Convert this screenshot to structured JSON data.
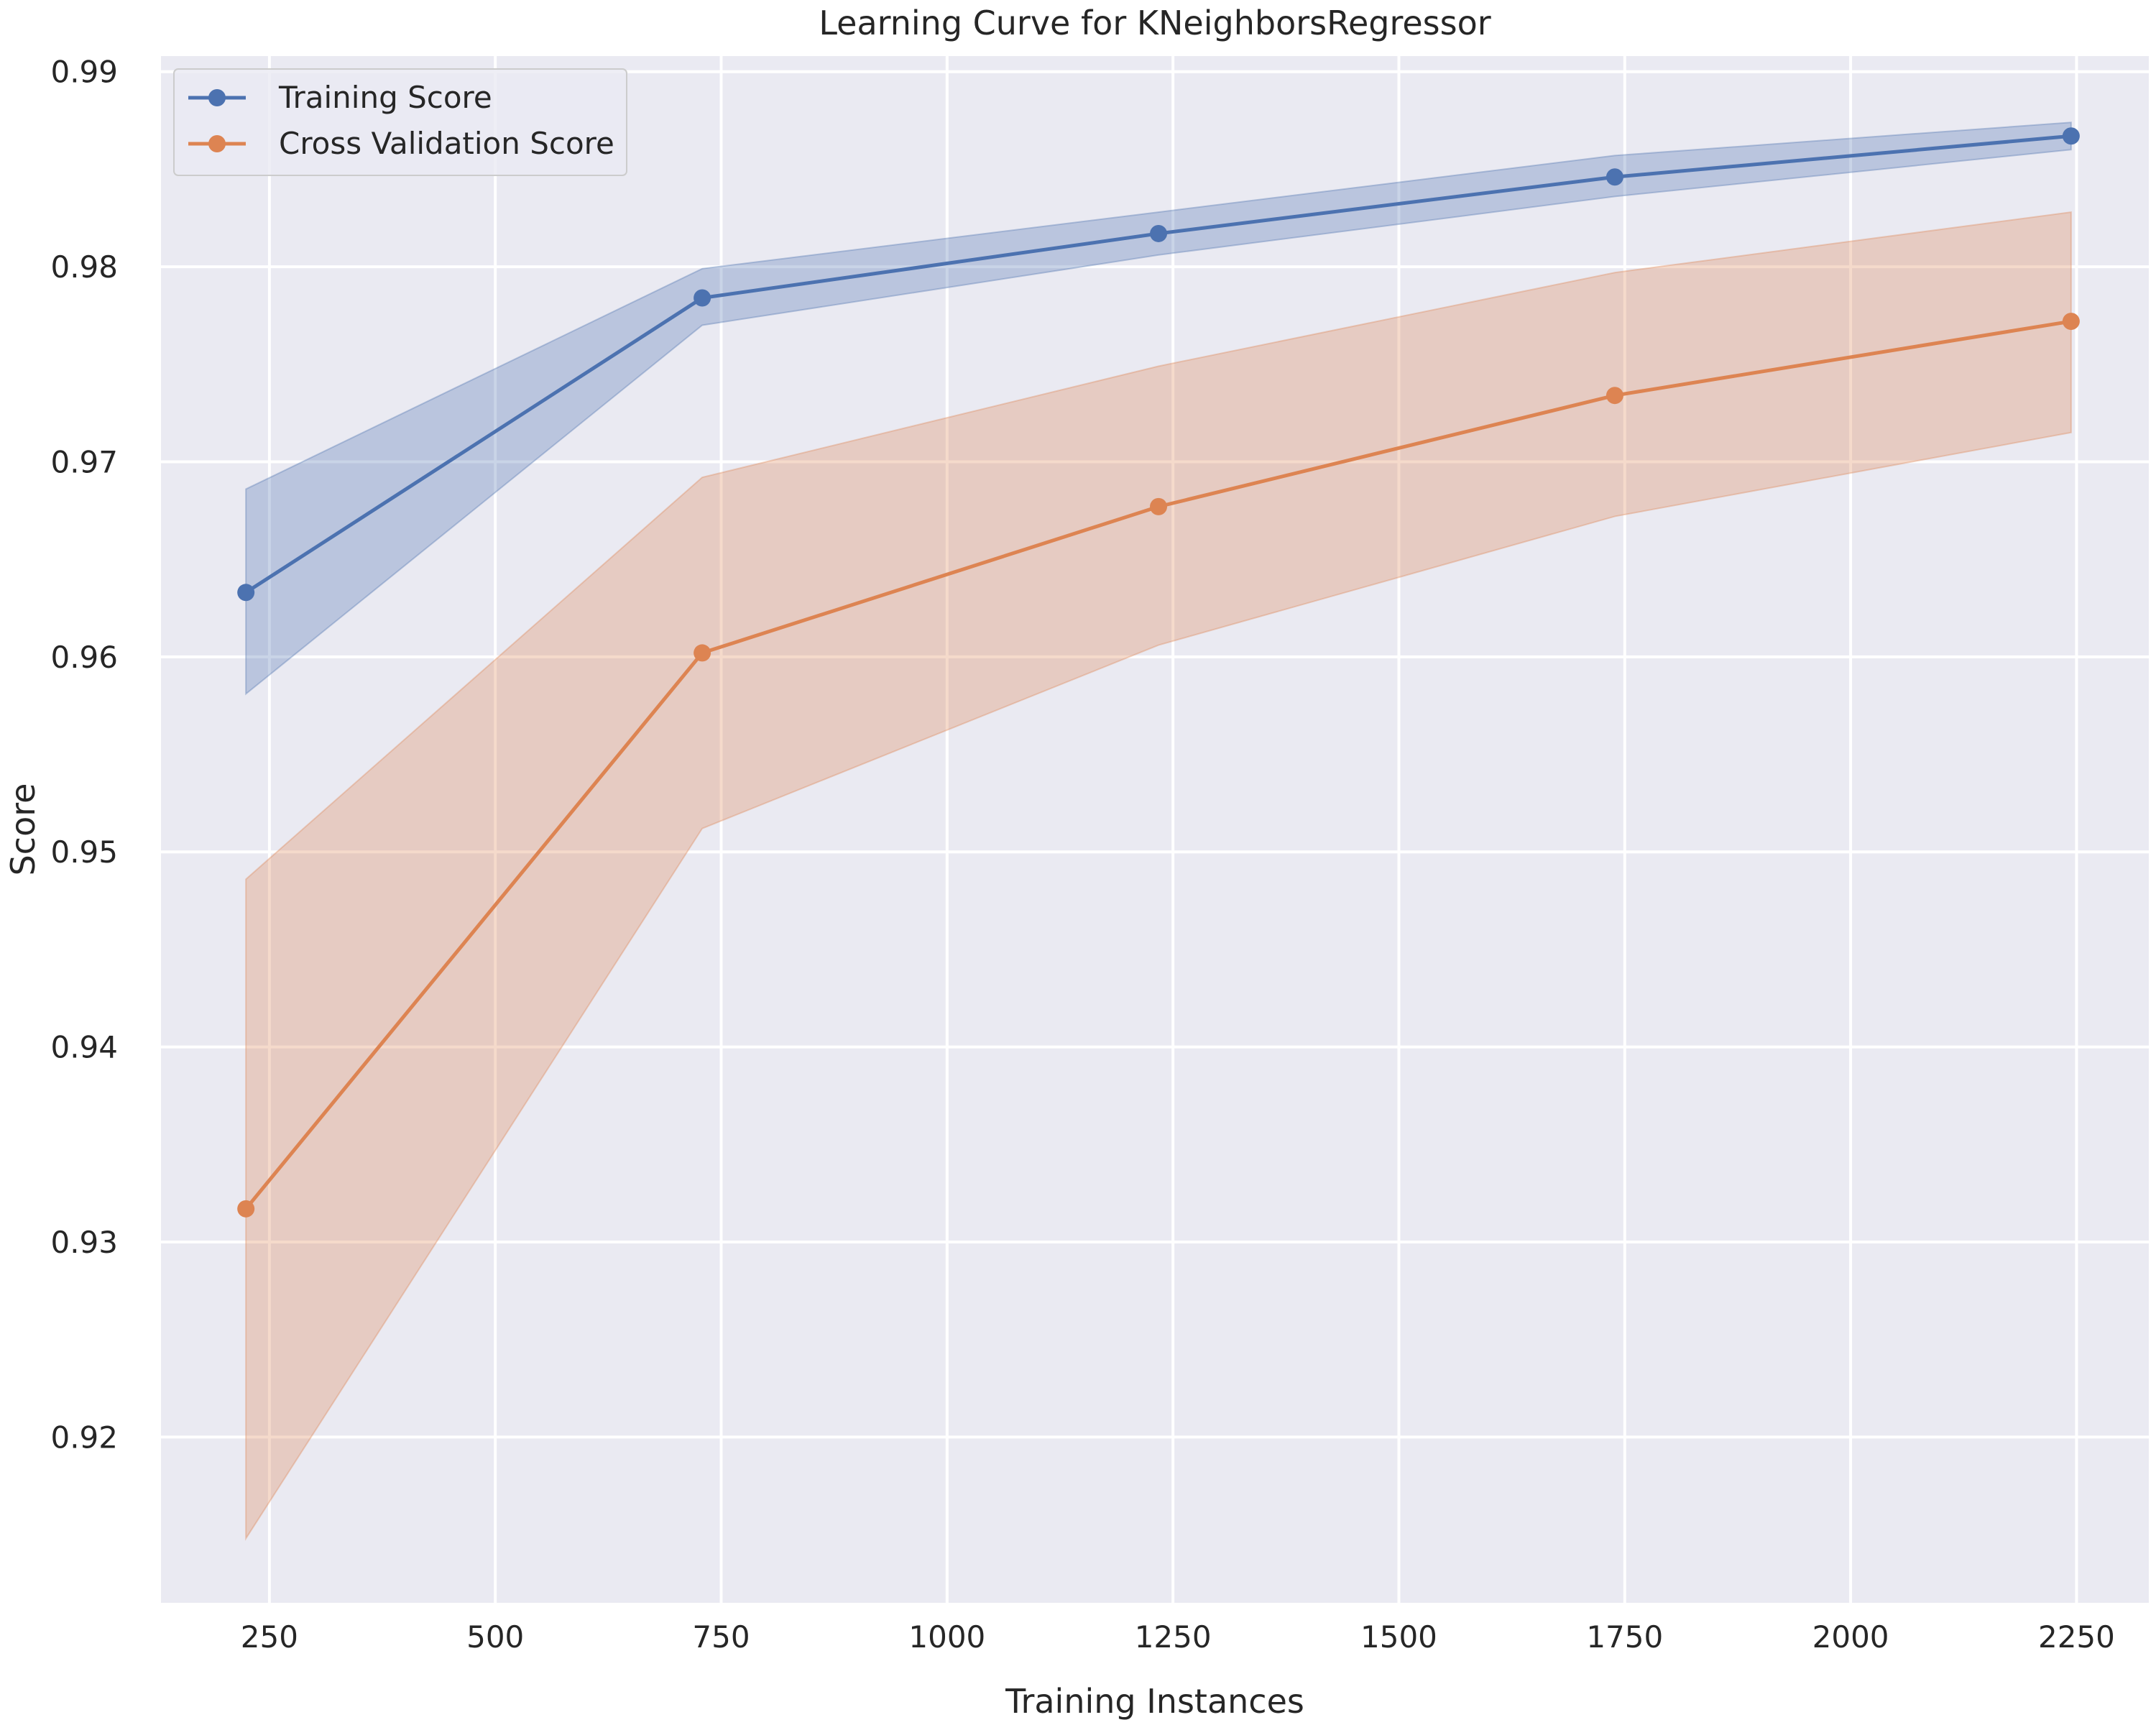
{
  "chart_data": {
    "type": "line",
    "title": "Learning Curve for KNeighborsRegressor",
    "xlabel": "Training Instances",
    "ylabel": "Score",
    "xlim": [
      130,
      2330
    ],
    "ylim": [
      0.9115,
      0.9908
    ],
    "xticks": [
      250,
      500,
      750,
      1000,
      1250,
      1500,
      1750,
      2000,
      2250
    ],
    "xtick_labels": [
      "250",
      "500",
      "750",
      "1000",
      "1250",
      "1500",
      "1750",
      "2000",
      "2250"
    ],
    "yticks": [
      0.92,
      0.93,
      0.94,
      0.95,
      0.96,
      0.97,
      0.98,
      0.99
    ],
    "ytick_labels": [
      "0.92",
      "0.93",
      "0.94",
      "0.95",
      "0.96",
      "0.97",
      "0.98",
      "0.99"
    ],
    "grid": true,
    "legend_position": "top-left",
    "x": [
      224,
      729,
      1234,
      1739,
      2244
    ],
    "series": [
      {
        "name": "Training Score",
        "color": "#4c72b0",
        "values": [
          0.9633,
          0.9784,
          0.9817,
          0.9846,
          0.9867
        ],
        "lower": [
          0.9581,
          0.977,
          0.9806,
          0.9836,
          0.986
        ],
        "upper": [
          0.9686,
          0.9799,
          0.9828,
          0.9857,
          0.9874
        ]
      },
      {
        "name": "Cross Validation Score",
        "color": "#dd8452",
        "values": [
          0.9317,
          0.9602,
          0.9677,
          0.9734,
          0.9772
        ],
        "lower": [
          0.9148,
          0.9512,
          0.9606,
          0.9672,
          0.9715
        ],
        "upper": [
          0.9486,
          0.9692,
          0.9749,
          0.9797,
          0.9828
        ]
      }
    ]
  }
}
